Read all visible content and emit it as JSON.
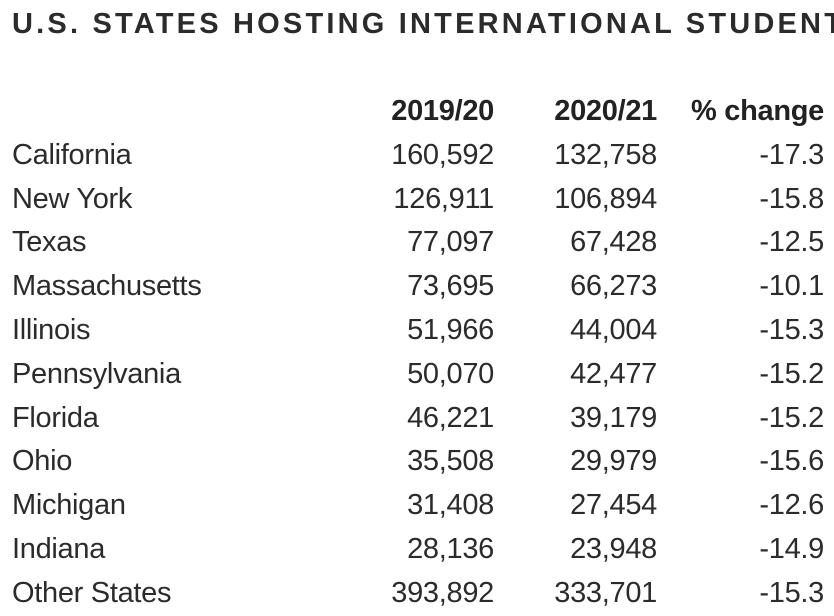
{
  "chart_data": {
    "type": "table",
    "title": "U.S. STATES HOSTING INTERNATIONAL STUDENTS",
    "columns": [
      "",
      "2019/20",
      "2020/21",
      "% change"
    ],
    "rows": [
      {
        "state": "California",
        "y2019_20": "160,592",
        "y2020_21": "132,758",
        "pct_change": "-17.3"
      },
      {
        "state": "New York",
        "y2019_20": "126,911",
        "y2020_21": "106,894",
        "pct_change": "-15.8"
      },
      {
        "state": "Texas",
        "y2019_20": "77,097",
        "y2020_21": "67,428",
        "pct_change": "-12.5"
      },
      {
        "state": "Massachusetts",
        "y2019_20": "73,695",
        "y2020_21": "66,273",
        "pct_change": "-10.1"
      },
      {
        "state": "Illinois",
        "y2019_20": "51,966",
        "y2020_21": "44,004",
        "pct_change": "-15.3"
      },
      {
        "state": "Pennsylvania",
        "y2019_20": "50,070",
        "y2020_21": "42,477",
        "pct_change": "-15.2"
      },
      {
        "state": "Florida",
        "y2019_20": "46,221",
        "y2020_21": "39,179",
        "pct_change": "-15.2"
      },
      {
        "state": "Ohio",
        "y2019_20": "35,508",
        "y2020_21": "29,979",
        "pct_change": "-15.6"
      },
      {
        "state": "Michigan",
        "y2019_20": "31,408",
        "y2020_21": "27,454",
        "pct_change": "-12.6"
      },
      {
        "state": "Indiana",
        "y2019_20": "28,136",
        "y2020_21": "23,948",
        "pct_change": "-14.9"
      },
      {
        "state": "Other States",
        "y2019_20": "393,892",
        "y2020_21": "333,701",
        "pct_change": "-15.3"
      }
    ]
  }
}
